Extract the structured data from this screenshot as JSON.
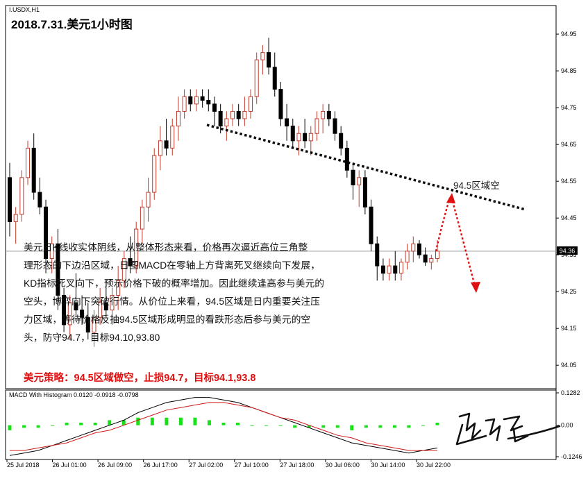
{
  "symbol": "I.USDX,H1",
  "title": "2018.7.31.美元1小时图",
  "current_price": "94.36",
  "analysis_lines": [
    "美元日K线收实体阴线，从整体形态来看，价格再次逼近高位三角整",
    "理形态的下边沿区域，日图MACD在零轴上方背离死叉继续向下发展，",
    "KD指标死叉向下，预示价格下破的概率增加。因此继续逢高参与美元的",
    "空头，博弈向下突破行情。从价位上来看，94.5区域是日内重要关注压",
    "力区域，等待价格反抽94.5区域形成明显的看跌形态后参与美元的空",
    "头，防守94.7，目标94.10,93.80"
  ],
  "strategy": "美元策略：94.5区域做空，止损94.7，目标94.1,93.8",
  "target_label": "94.5区域空",
  "macd_label": "MACD With Histogram 0.0120 -0.0918 -0.0798",
  "chart_data": [
    {
      "type": "candlestick",
      "y_ticks": [
        "94.95",
        "94.85",
        "94.75",
        "94.65",
        "94.55",
        "94.45",
        "94.35",
        "94.25",
        "94.15",
        "94.05"
      ],
      "ylim": [
        93.99,
        95.02
      ],
      "x_ticks": [
        "25 Jul 2018",
        "26 Jul 01:00",
        "26 Jul 09:00",
        "26 Jul 17:00",
        "27 Jul 02:00",
        "27 Jul 10:00",
        "27 Jul 18:00",
        "30 Jul 06:00",
        "30 Jul 14:00",
        "30 Jul 22:00"
      ],
      "current_price": 94.36,
      "candles": [
        [
          94.56,
          94.6,
          94.4,
          94.44
        ],
        [
          94.44,
          94.48,
          94.38,
          94.46
        ],
        [
          94.46,
          94.58,
          94.44,
          94.56
        ],
        [
          94.56,
          94.66,
          94.54,
          94.64
        ],
        [
          94.64,
          94.68,
          94.5,
          94.52
        ],
        [
          94.52,
          94.56,
          94.46,
          94.48
        ],
        [
          94.48,
          94.5,
          94.3,
          94.34
        ],
        [
          94.34,
          94.4,
          94.3,
          94.38
        ],
        [
          94.38,
          94.42,
          94.2,
          94.24
        ],
        [
          94.24,
          94.26,
          94.14,
          94.16
        ],
        [
          94.16,
          94.24,
          94.12,
          94.22
        ],
        [
          94.22,
          94.3,
          94.18,
          94.2
        ],
        [
          94.2,
          94.24,
          94.16,
          94.18
        ],
        [
          94.18,
          94.22,
          94.12,
          94.14
        ],
        [
          94.14,
          94.2,
          94.1,
          94.18
        ],
        [
          94.18,
          94.26,
          94.16,
          94.22
        ],
        [
          94.22,
          94.28,
          94.18,
          94.2
        ],
        [
          94.2,
          94.26,
          94.16,
          94.24
        ],
        [
          94.24,
          94.32,
          94.2,
          94.28
        ],
        [
          94.28,
          94.36,
          94.26,
          94.34
        ],
        [
          94.34,
          94.4,
          94.3,
          94.32
        ],
        [
          94.32,
          94.44,
          94.3,
          94.42
        ],
        [
          94.42,
          94.5,
          94.38,
          94.48
        ],
        [
          94.48,
          94.56,
          94.44,
          94.52
        ],
        [
          94.52,
          94.64,
          94.5,
          94.62
        ],
        [
          94.62,
          94.7,
          94.58,
          94.66
        ],
        [
          94.66,
          94.72,
          94.62,
          94.64
        ],
        [
          94.64,
          94.72,
          94.62,
          94.7
        ],
        [
          94.7,
          94.78,
          94.66,
          94.74
        ],
        [
          94.74,
          94.8,
          94.72,
          94.78
        ],
        [
          94.78,
          94.8,
          94.74,
          94.76
        ],
        [
          94.76,
          94.8,
          94.74,
          94.78
        ],
        [
          94.78,
          94.8,
          94.75,
          94.77
        ],
        [
          94.77,
          94.8,
          94.74,
          94.76
        ],
        [
          94.76,
          94.78,
          94.7,
          94.74
        ],
        [
          94.74,
          94.76,
          94.68,
          94.7
        ],
        [
          94.7,
          94.74,
          94.66,
          94.72
        ],
        [
          94.72,
          94.76,
          94.7,
          94.74
        ],
        [
          94.74,
          94.76,
          94.7,
          94.72
        ],
        [
          94.72,
          94.78,
          94.7,
          94.74
        ],
        [
          94.74,
          94.8,
          94.72,
          94.78
        ],
        [
          94.78,
          94.9,
          94.76,
          94.88
        ],
        [
          94.88,
          94.92,
          94.84,
          94.9
        ],
        [
          94.9,
          94.94,
          94.84,
          94.86
        ],
        [
          94.86,
          94.9,
          94.78,
          94.8
        ],
        [
          94.8,
          94.82,
          94.7,
          94.72
        ],
        [
          94.72,
          94.76,
          94.66,
          94.7
        ],
        [
          94.7,
          94.72,
          94.64,
          94.66
        ],
        [
          94.66,
          94.7,
          94.62,
          94.68
        ],
        [
          94.68,
          94.72,
          94.64,
          94.66
        ],
        [
          94.66,
          94.7,
          94.62,
          94.68
        ],
        [
          94.68,
          94.74,
          94.66,
          94.72
        ],
        [
          94.72,
          94.76,
          94.68,
          94.74
        ],
        [
          94.74,
          94.76,
          94.7,
          94.72
        ],
        [
          94.72,
          94.74,
          94.66,
          94.68
        ],
        [
          94.68,
          94.7,
          94.62,
          94.64
        ],
        [
          94.64,
          94.66,
          94.56,
          94.58
        ],
        [
          94.58,
          94.6,
          94.5,
          94.54
        ],
        [
          94.54,
          94.58,
          94.48,
          94.56
        ],
        [
          94.56,
          94.58,
          94.46,
          94.48
        ],
        [
          94.48,
          94.5,
          94.36,
          94.38
        ],
        [
          94.38,
          94.4,
          94.28,
          94.32
        ],
        [
          94.32,
          94.34,
          94.28,
          94.3
        ],
        [
          94.3,
          94.34,
          94.28,
          94.32
        ],
        [
          94.32,
          94.36,
          94.28,
          94.3
        ],
        [
          94.3,
          94.34,
          94.28,
          94.33
        ],
        [
          94.33,
          94.38,
          94.31,
          94.36
        ],
        [
          94.36,
          94.4,
          94.33,
          94.38
        ],
        [
          94.38,
          94.39,
          94.34,
          94.35
        ],
        [
          94.35,
          94.37,
          94.32,
          94.33
        ],
        [
          94.33,
          94.35,
          94.31,
          94.34
        ],
        [
          94.34,
          94.39,
          94.33,
          94.36
        ]
      ],
      "annotations": [
        "94.5区域空"
      ]
    },
    {
      "type": "line",
      "title": "MACD With Histogram 0.0120 -0.0918 -0.0798",
      "y_ticks": [
        "0.1282",
        "0.00",
        "-0.1246"
      ],
      "ylim": [
        -0.1246,
        0.1282
      ],
      "series": [
        {
          "values": [
            -0.12,
            -0.11,
            -0.1,
            -0.08,
            -0.06,
            -0.04,
            -0.02,
            0.0,
            0.02,
            0.05,
            0.07,
            0.09,
            0.1,
            0.11,
            0.11,
            0.1,
            0.09,
            0.07,
            0.05,
            0.03,
            0.01,
            -0.01,
            -0.03,
            -0.05,
            -0.07,
            -0.08,
            -0.09,
            -0.1,
            -0.11,
            -0.1,
            -0.09
          ]
        },
        {
          "values": [
            -0.1,
            -0.1,
            -0.09,
            -0.08,
            -0.07,
            -0.05,
            -0.03,
            -0.02,
            0.0,
            0.02,
            0.04,
            0.06,
            0.07,
            0.08,
            0.09,
            0.09,
            0.08,
            0.07,
            0.05,
            0.03,
            0.02,
            0.0,
            -0.02,
            -0.04,
            -0.05,
            -0.07,
            -0.08,
            -0.09,
            -0.1,
            -0.1,
            -0.1
          ]
        }
      ],
      "histogram": [
        -0.02,
        -0.01,
        -0.01,
        0.0,
        0.01,
        0.01,
        0.01,
        0.02,
        0.02,
        0.03,
        0.03,
        0.03,
        0.03,
        0.03,
        0.02,
        0.01,
        0.01,
        0.0,
        0.0,
        0.0,
        -0.01,
        -0.01,
        -0.01,
        -0.01,
        -0.02,
        -0.01,
        -0.01,
        -0.01,
        -0.01,
        0.0,
        0.01
      ]
    }
  ]
}
